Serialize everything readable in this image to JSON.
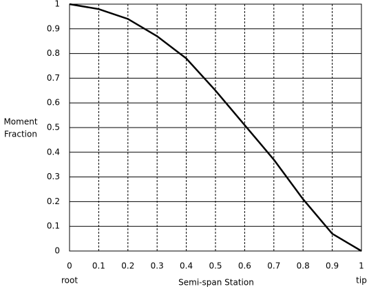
{
  "chart_data": {
    "type": "line",
    "ylabel": [
      "Moment",
      "Fraction"
    ],
    "xlabel": "Semi-span Station",
    "annotations": [
      {
        "text": "root",
        "x": 0
      },
      {
        "text": "tip",
        "x": 1
      }
    ],
    "x": [
      0,
      0.1,
      0.2,
      0.3,
      0.4,
      0.5,
      0.6,
      0.7,
      0.8,
      0.9,
      1
    ],
    "series": [
      {
        "color": "#000000",
        "values": [
          1,
          0.98,
          0.94,
          0.87,
          0.78,
          0.65,
          0.51,
          0.37,
          0.21,
          0.07,
          0
        ]
      }
    ],
    "xlim": [
      0,
      1
    ],
    "xticks": [
      0,
      0.1,
      0.2,
      0.3,
      0.4,
      0.5,
      0.6,
      0.7,
      0.8,
      0.9,
      1
    ],
    "ylim": [
      0,
      1
    ],
    "yticks": [
      0,
      0.1,
      0.2,
      0.3,
      0.4,
      0.5,
      0.6,
      0.7,
      0.8,
      0.9,
      1
    ],
    "grid": true
  }
}
